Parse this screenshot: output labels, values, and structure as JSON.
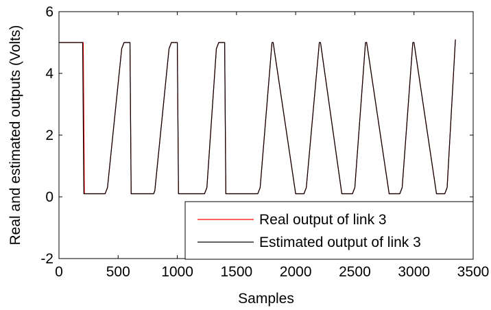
{
  "chart_data": {
    "type": "line",
    "xlabel": "Samples",
    "ylabel": "Real and estimated outputs (Volts)",
    "xlim": [
      0,
      3500
    ],
    "ylim": [
      -2,
      6
    ],
    "xticks": [
      0,
      500,
      1000,
      1500,
      2000,
      2500,
      3000,
      3500
    ],
    "yticks": [
      -2,
      0,
      2,
      4,
      6
    ],
    "legend_position": "bottom-right",
    "series": [
      {
        "name": "Real output of link 3",
        "color": "#ff0000",
        "x": [
          0,
          205,
          215,
          390,
          410,
          530,
          550,
          600,
          610,
          800,
          810,
          930,
          950,
          1000,
          1010,
          1230,
          1250,
          1330,
          1350,
          1400,
          1410,
          1600,
          1610,
          1680,
          1700,
          1800,
          1810,
          2000,
          2010,
          2070,
          2090,
          2200,
          2210,
          2390,
          2400,
          2480,
          2500,
          2590,
          2600,
          2790,
          2800,
          2880,
          2900,
          2990,
          3000,
          3190,
          3200,
          3260,
          3280,
          3350
        ],
        "y": [
          5.0,
          5.0,
          0.1,
          0.1,
          0.3,
          4.8,
          5.0,
          5.0,
          0.1,
          0.1,
          0.2,
          4.8,
          5.0,
          5.0,
          0.1,
          0.1,
          0.3,
          4.8,
          5.0,
          5.0,
          0.1,
          0.1,
          0.1,
          0.1,
          0.3,
          5.0,
          5.0,
          0.1,
          0.1,
          0.1,
          0.3,
          5.0,
          5.0,
          0.1,
          0.1,
          0.1,
          0.3,
          5.0,
          5.0,
          0.1,
          0.1,
          0.1,
          0.3,
          5.0,
          5.0,
          0.1,
          0.1,
          0.1,
          0.3,
          5.1
        ]
      },
      {
        "name": "Estimated output of link 3",
        "color": "#000000",
        "x": [
          0,
          200,
          210,
          390,
          410,
          530,
          550,
          600,
          610,
          800,
          810,
          930,
          950,
          1000,
          1010,
          1230,
          1250,
          1330,
          1350,
          1400,
          1410,
          1600,
          1610,
          1680,
          1700,
          1800,
          1810,
          2000,
          2010,
          2070,
          2090,
          2200,
          2210,
          2390,
          2400,
          2480,
          2500,
          2590,
          2600,
          2790,
          2800,
          2880,
          2900,
          2990,
          3000,
          3190,
          3200,
          3260,
          3280,
          3350
        ],
        "y": [
          5.0,
          5.0,
          0.1,
          0.1,
          0.3,
          4.8,
          5.0,
          5.0,
          0.1,
          0.1,
          0.2,
          4.8,
          5.0,
          5.0,
          0.1,
          0.1,
          0.3,
          4.8,
          5.0,
          5.0,
          0.1,
          0.1,
          0.1,
          0.1,
          0.3,
          5.0,
          5.0,
          0.1,
          0.1,
          0.1,
          0.3,
          5.0,
          5.0,
          0.1,
          0.1,
          0.1,
          0.3,
          5.0,
          5.0,
          0.1,
          0.1,
          0.1,
          0.3,
          5.0,
          5.0,
          0.1,
          0.1,
          0.1,
          0.3,
          5.1
        ]
      }
    ]
  }
}
